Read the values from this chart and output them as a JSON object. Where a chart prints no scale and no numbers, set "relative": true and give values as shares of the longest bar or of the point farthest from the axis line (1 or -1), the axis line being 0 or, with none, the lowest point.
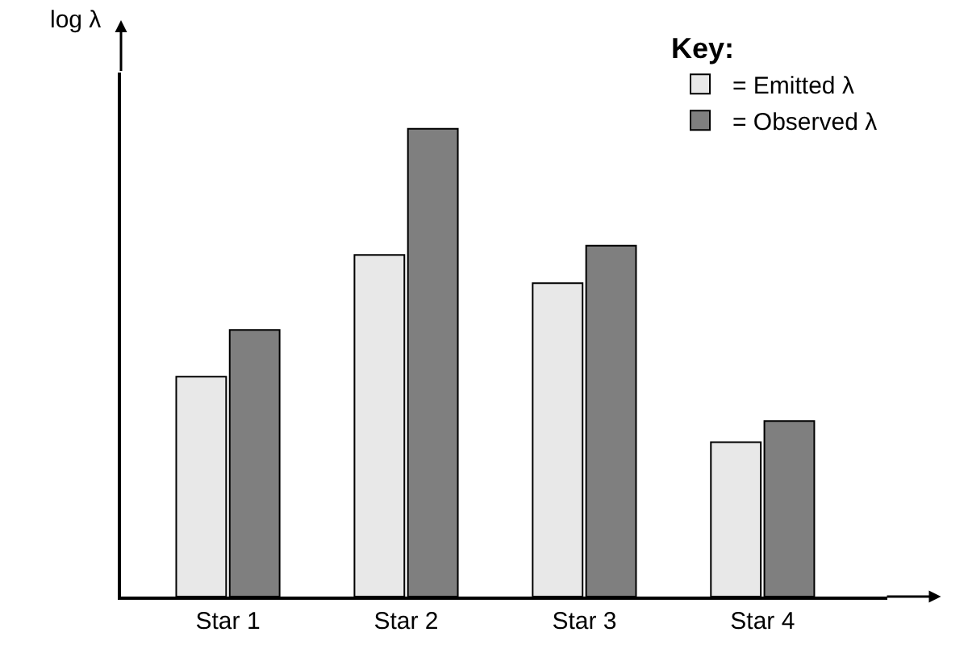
{
  "chart_data": {
    "type": "bar",
    "relative": true,
    "ylabel": "log λ",
    "legend_title": "Key:",
    "legend": "top right",
    "categories": [
      "Star 1",
      "Star 2",
      "Star 3",
      "Star 4"
    ],
    "series": [
      {
        "name": "= Emitted λ",
        "color": "#e8e8e8",
        "values": [
          0.47,
          0.73,
          0.67,
          0.33
        ]
      },
      {
        "name": "= Observed λ",
        "color": "#7f7f7f",
        "values": [
          0.57,
          1,
          0.75,
          0.375
        ]
      }
    ]
  }
}
